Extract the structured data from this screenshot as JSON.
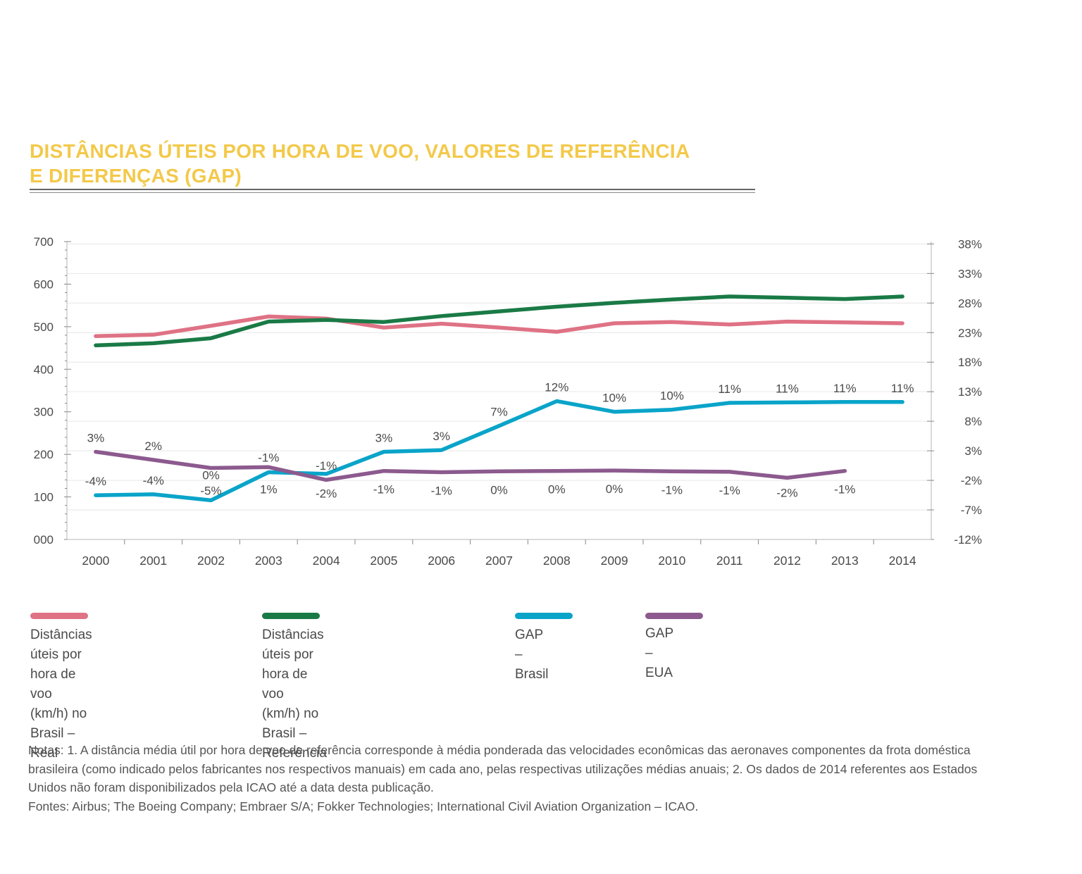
{
  "chart_data": {
    "type": "line",
    "title": "DISTÂNCIAS ÚTEIS POR HORA DE VOO, VALORES DE REFERÊNCIA E DIFERENÇAS (GAP)",
    "title_lines": [
      "DISTÂNCIAS ÚTEIS POR HORA DE VOO, VALORES DE REFERÊNCIA",
      "E DIFERENÇAS (GAP)"
    ],
    "x": [
      "2000",
      "2001",
      "2002",
      "2003",
      "2004",
      "2005",
      "2006",
      "2007",
      "2008",
      "2009",
      "2010",
      "2011",
      "2012",
      "2013",
      "2014"
    ],
    "y_left": {
      "ylim": [
        0,
        700
      ],
      "ticks": [
        "000",
        "100",
        "200",
        "300",
        "400",
        "500",
        "600",
        "700"
      ]
    },
    "y_right": {
      "ylim": [
        -12,
        38.4
      ],
      "ticks": [
        "-12%",
        "-7%",
        "-2%",
        "3%",
        "8%",
        "13%",
        "18%",
        "23%",
        "28%",
        "33%",
        "38%"
      ]
    },
    "grid": true,
    "series": [
      {
        "name": "Distâncias úteis por hora de voo (km/h) no Brasil – Real",
        "axis": "left",
        "color": "#df7285",
        "values": [
          478,
          481,
          502,
          524,
          519,
          498,
          507,
          498,
          488,
          508,
          511,
          505,
          512,
          510,
          508
        ]
      },
      {
        "name": "Distâncias úteis por hora de voo (km/h) no Brasil – Referência",
        "axis": "left",
        "color": "#1a7a46",
        "values": [
          456,
          461,
          473,
          512,
          516,
          511,
          525,
          536,
          547,
          556,
          564,
          571,
          568,
          565,
          571
        ]
      },
      {
        "name": "GAP – Brasil",
        "axis": "left",
        "color": "#0aa4c9",
        "values": [
          104,
          106,
          92,
          158,
          154,
          206,
          210,
          267,
          325,
          300,
          305,
          321,
          322,
          323,
          323
        ],
        "labels": [
          "-4%",
          "-4%",
          "-5%",
          "1%",
          "-1%",
          "3%",
          "3%",
          "7%",
          "12%",
          "10%",
          "10%",
          "11%",
          "11%",
          "11%",
          "11%"
        ]
      },
      {
        "name": "GAP – EUA",
        "axis": "left",
        "color": "#8c5a8e",
        "values": [
          206,
          187,
          168,
          170,
          140,
          161,
          158,
          160,
          161,
          162,
          160,
          159,
          145,
          161,
          null
        ],
        "labels": [
          "3%",
          "2%",
          "0%",
          "-1%",
          "-2%",
          "-1%",
          "-1%",
          "0%",
          "0%",
          "0%",
          "-1%",
          "-1%",
          "-2%",
          "-1%",
          null
        ]
      }
    ]
  },
  "legend": [
    {
      "label": "Distâncias úteis por hora de\nvoo (km/h) no Brasil – Real",
      "color": "#df7285"
    },
    {
      "label": "Distâncias úteis por hora de voo\n(km/h) no Brasil – Referência",
      "color": "#1a7a46"
    },
    {
      "label": "GAP – Brasil",
      "color": "#0aa4c9"
    },
    {
      "label": "GAP – EUA",
      "color": "#8c5a8e"
    }
  ],
  "notes": {
    "line1": "Notas: 1. A distância média útil por hora de voo de referência corresponde à média ponderada das velocidades econômicas das aeronaves componentes da frota doméstica brasileira (como indicado pelos fabricantes nos respectivos manuais) em cada ano, pelas respectivas utilizações médias anuais; 2. Os dados de 2014 referentes aos Estados Unidos não foram disponibilizados pela ICAO até a data desta publicação.",
    "line2": "Fontes: Airbus; The Boeing Company; Embraer S/A; Fokker Technologies; International Civil Aviation Organization – ICAO."
  }
}
